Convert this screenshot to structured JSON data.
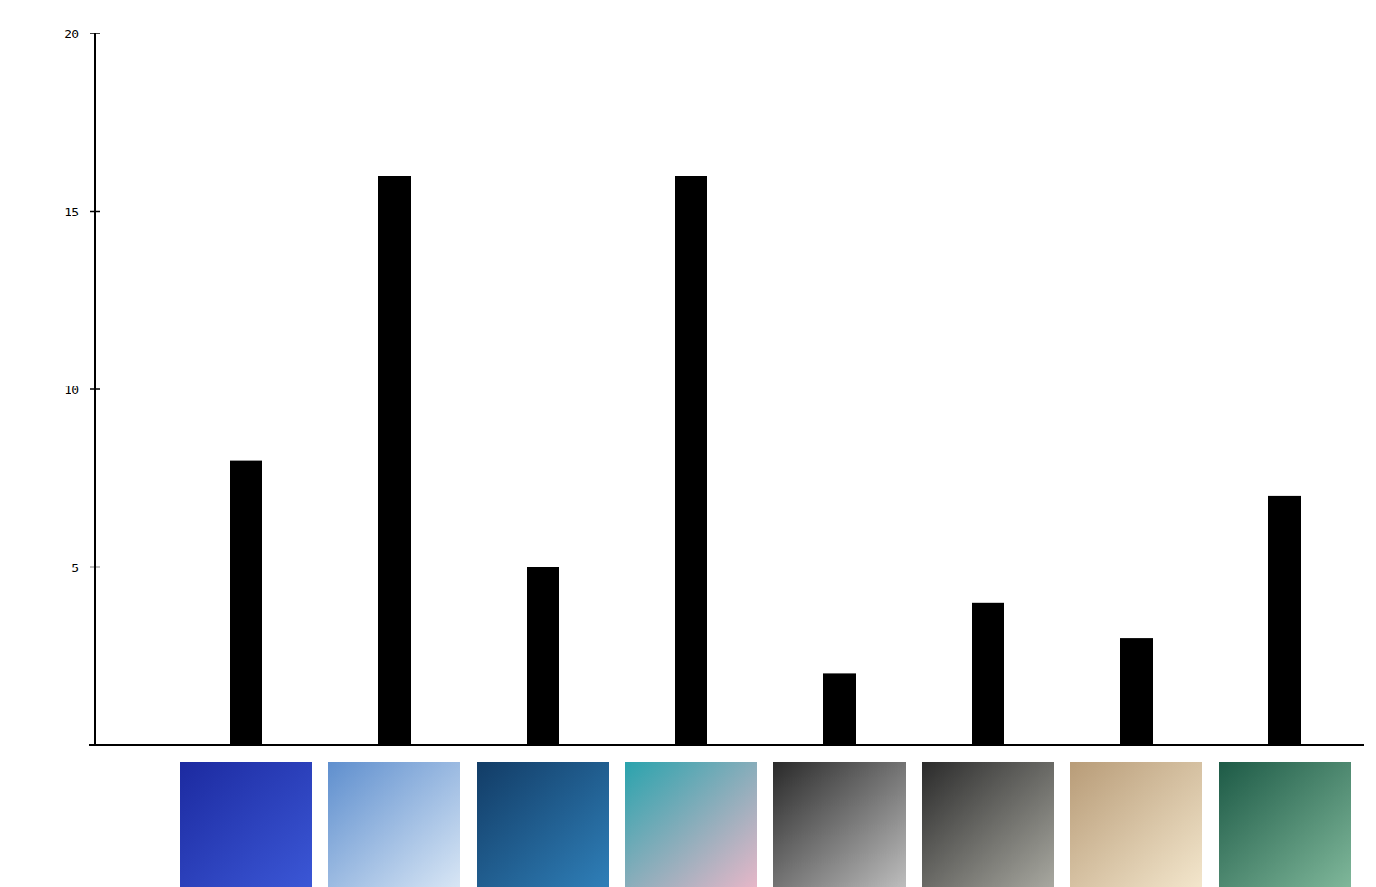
{
  "chart_data": {
    "type": "bar",
    "categories": [
      null,
      null,
      null,
      null,
      null,
      null,
      null,
      null
    ],
    "values": [
      8,
      16,
      5,
      16,
      2,
      4,
      3,
      7
    ],
    "color": "#000000",
    "ylim": [
      0,
      20
    ],
    "yticks": [
      5,
      10,
      15,
      20
    ],
    "grid": false,
    "tick_labels": "y"
  }
}
